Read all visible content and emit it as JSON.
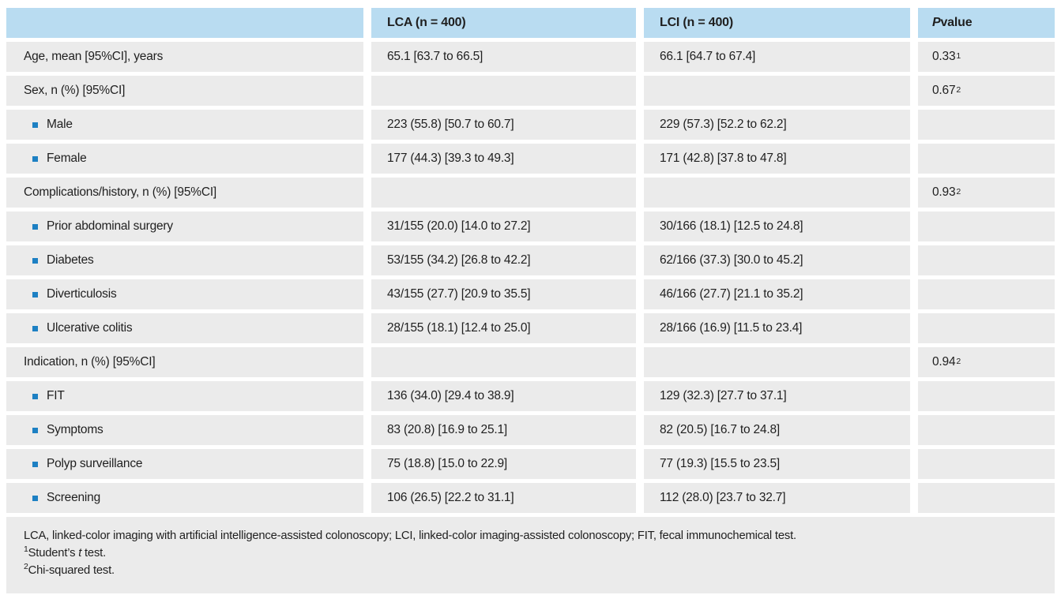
{
  "table": {
    "header": {
      "col1": "",
      "lca": "LCA (n = 400)",
      "lci": "LCI (n = 400)",
      "p_italic": "P",
      "p_rest": " value"
    },
    "rows": [
      {
        "label": "Age, mean [95%CI], years",
        "type": "plain",
        "lca": "65.1 [63.7 to 66.5]",
        "lci": "66.1 [64.7 to 67.4]",
        "p": "0.33",
        "p_sup": "1"
      },
      {
        "label": "Sex, n (%) [95%CI]",
        "type": "group",
        "lca": "",
        "lci": "",
        "p": "0.67",
        "p_sup": "2"
      },
      {
        "label": "Male",
        "type": "sub",
        "lca": "223 (55.8) [50.7 to 60.7]",
        "lci": "229 (57.3) [52.2 to 62.2]",
        "p": "",
        "p_sup": ""
      },
      {
        "label": "Female",
        "type": "sub",
        "lca": "177 (44.3) [39.3 to 49.3]",
        "lci": "171 (42.8) [37.8 to 47.8]",
        "p": "",
        "p_sup": ""
      },
      {
        "label": "Complications/history, n (%) [95%CI]",
        "type": "group",
        "lca": "",
        "lci": "",
        "p": "0.93",
        "p_sup": "2"
      },
      {
        "label": "Prior abdominal surgery",
        "type": "sub",
        "lca": "31/155 (20.0) [14.0 to 27.2]",
        "lci": "30/166 (18.1) [12.5 to 24.8]",
        "p": "",
        "p_sup": ""
      },
      {
        "label": "Diabetes",
        "type": "sub",
        "lca": "53/155 (34.2) [26.8 to 42.2]",
        "lci": "62/166 (37.3) [30.0 to 45.2]",
        "p": "",
        "p_sup": ""
      },
      {
        "label": "Diverticulosis",
        "type": "sub",
        "lca": "43/155 (27.7) [20.9 to 35.5]",
        "lci": "46/166 (27.7) [21.1 to 35.2]",
        "p": "",
        "p_sup": ""
      },
      {
        "label": "Ulcerative colitis",
        "type": "sub",
        "lca": "28/155 (18.1) [12.4 to 25.0]",
        "lci": "28/166 (16.9) [11.5 to 23.4]",
        "p": "",
        "p_sup": ""
      },
      {
        "label": "Indication, n (%) [95%CI]",
        "type": "group",
        "lca": "",
        "lci": "",
        "p": "0.94",
        "p_sup": "2"
      },
      {
        "label": "FIT",
        "type": "sub",
        "lca": "136 (34.0) [29.4 to 38.9]",
        "lci": "129 (32.3) [27.7 to 37.1]",
        "p": "",
        "p_sup": ""
      },
      {
        "label": "Symptoms",
        "type": "sub",
        "lca": "83 (20.8) [16.9 to 25.1]",
        "lci": "82 (20.5) [16.7 to 24.8]",
        "p": "",
        "p_sup": ""
      },
      {
        "label": "Polyp surveillance",
        "type": "sub",
        "lca": "75 (18.8) [15.0 to 22.9]",
        "lci": "77 (19.3) [15.5 to 23.5]",
        "p": "",
        "p_sup": ""
      },
      {
        "label": "Screening",
        "type": "sub",
        "lca": "106 (26.5) [22.2 to 31.1]",
        "lci": "112 (28.0) [23.7 to 32.7]",
        "p": "",
        "p_sup": ""
      }
    ],
    "footnote": {
      "abbreviations": "LCA, linked-color imaging with artificial intelligence-assisted colonoscopy; LCI, linked-color imaging-assisted colonoscopy; FIT, fecal immunochemical test.",
      "fn1_sup": "1",
      "fn1_pre": "Student’s ",
      "fn1_italic": "t",
      "fn1_post": " test.",
      "fn2_sup": "2",
      "fn2_text": "Chi-squared test."
    },
    "colors": {
      "header_bg": "#b9dcf1",
      "row_bg": "#ebebeb",
      "bullet": "#1d80c3",
      "text": "#1f1f1f"
    }
  }
}
